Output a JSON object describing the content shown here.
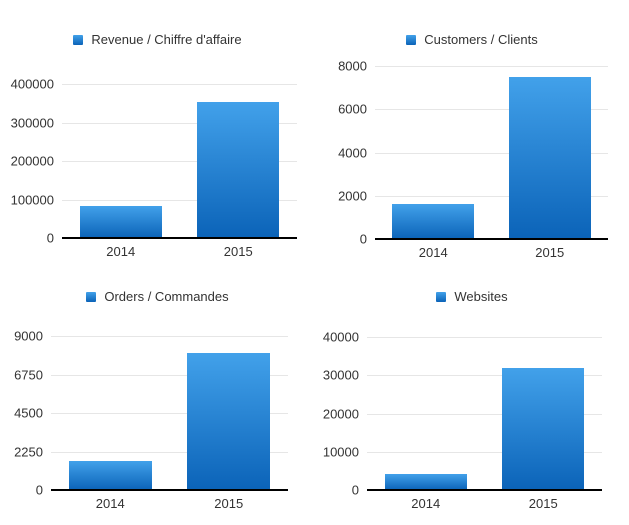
{
  "page": {
    "background": "#ffffff"
  },
  "styles": {
    "grid_color": "#e6e6e6",
    "axis_line_color": "#000000",
    "text_color": "#333333"
  },
  "chart_data": [
    {
      "type": "bar",
      "title": "Revenue / Chiffre d'affaire",
      "legend_position": "top",
      "grid": true,
      "categories": [
        "2014",
        "2015"
      ],
      "values": [
        82000,
        352000
      ],
      "ylim": [
        0,
        400000
      ],
      "yticks": [
        0,
        100000,
        200000,
        300000,
        400000
      ],
      "xlabel": "",
      "ylabel": "",
      "bar_color_top": "#42a1ea",
      "bar_color_bottom": "#0b63b8"
    },
    {
      "type": "bar",
      "title": "Customers / Clients",
      "legend_position": "top",
      "grid": true,
      "categories": [
        "2014",
        "2015"
      ],
      "values": [
        1600,
        7500
      ],
      "ylim": [
        0,
        8000
      ],
      "yticks": [
        0,
        2000,
        4000,
        6000,
        8000
      ],
      "xlabel": "",
      "ylabel": "",
      "bar_color_top": "#42a1ea",
      "bar_color_bottom": "#0b63b8"
    },
    {
      "type": "bar",
      "title": "Orders / Commandes",
      "legend_position": "top",
      "grid": true,
      "categories": [
        "2014",
        "2015"
      ],
      "values": [
        1700,
        8000
      ],
      "ylim": [
        0,
        9000
      ],
      "yticks": [
        0,
        2250,
        4500,
        6750,
        9000
      ],
      "xlabel": "",
      "ylabel": "",
      "bar_color_top": "#42a1ea",
      "bar_color_bottom": "#0b63b8"
    },
    {
      "type": "bar",
      "title": "Websites",
      "legend_position": "top",
      "grid": true,
      "categories": [
        "2014",
        "2015"
      ],
      "values": [
        4200,
        32000
      ],
      "ylim": [
        0,
        40000
      ],
      "yticks": [
        0,
        10000,
        20000,
        30000,
        40000
      ],
      "xlabel": "",
      "ylabel": "",
      "bar_color_top": "#42a1ea",
      "bar_color_bottom": "#0b63b8"
    }
  ]
}
